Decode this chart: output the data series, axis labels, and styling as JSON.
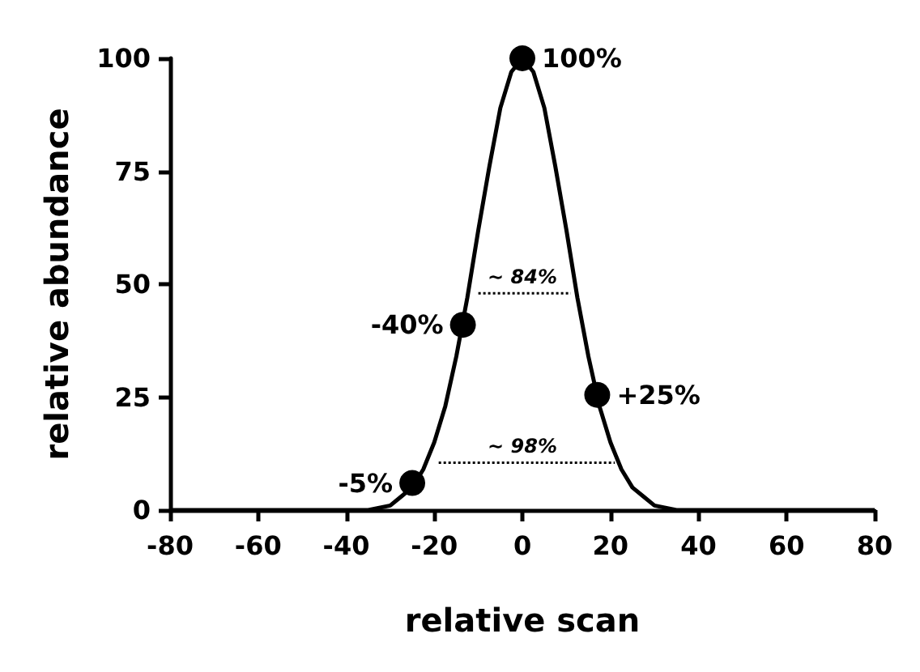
{
  "chart_data": {
    "type": "line",
    "xlabel": "relative scan",
    "ylabel": "relative abundance",
    "xlim": [
      -80,
      80
    ],
    "xticks": [
      -80,
      -60,
      -40,
      -20,
      0,
      20,
      40,
      60,
      80
    ],
    "ylim": [
      0,
      100
    ],
    "yticks": [
      0,
      25,
      50,
      75,
      100
    ],
    "grid": false,
    "series": [
      {
        "color": "#000000",
        "marker": "none",
        "line_style": "solid",
        "x": [
          -80,
          -40,
          -35,
          -30,
          -27.5,
          -25,
          -22.5,
          -20,
          -17.5,
          -15,
          -12.5,
          -10,
          -7.5,
          -5,
          -2.5,
          0,
          2.5,
          5,
          7.5,
          10,
          12.5,
          15,
          17.5,
          20,
          22.5,
          25,
          27.5,
          30,
          35,
          40,
          80
        ],
        "values": [
          0,
          0,
          0,
          1,
          3,
          5,
          9,
          15,
          23,
          34,
          47,
          62,
          76,
          89,
          97,
          100,
          97,
          89,
          76,
          62,
          47,
          34,
          23,
          15,
          9,
          5,
          3,
          1,
          0,
          0,
          0
        ]
      },
      {
        "type": "scatter",
        "color": "#000000",
        "marker": "circle",
        "x": [
          -25,
          -13.5,
          0,
          17
        ],
        "values": [
          6,
          41,
          100,
          25.5
        ]
      },
      {
        "type": "line",
        "color": "#000000",
        "marker": "none",
        "line_style": "dotted",
        "x": [
          -10,
          11
        ],
        "values": [
          48,
          48
        ]
      },
      {
        "type": "line",
        "color": "#000000",
        "marker": "none",
        "line_style": "dotted",
        "x": [
          -19,
          21
        ],
        "values": [
          10.5,
          10.5
        ]
      }
    ],
    "annotations": [
      {
        "text": "-5%",
        "x": -25,
        "y": 6
      },
      {
        "text": "-40%",
        "x": -13.5,
        "y": 41
      },
      {
        "text": "100%",
        "x": 0,
        "y": 100
      },
      {
        "text": "+25%",
        "x": 17,
        "y": 25.5
      },
      {
        "text": "~ 84%",
        "x": 0,
        "y": 48
      },
      {
        "text": "~ 98%",
        "x": 0,
        "y": 10.5
      }
    ]
  }
}
